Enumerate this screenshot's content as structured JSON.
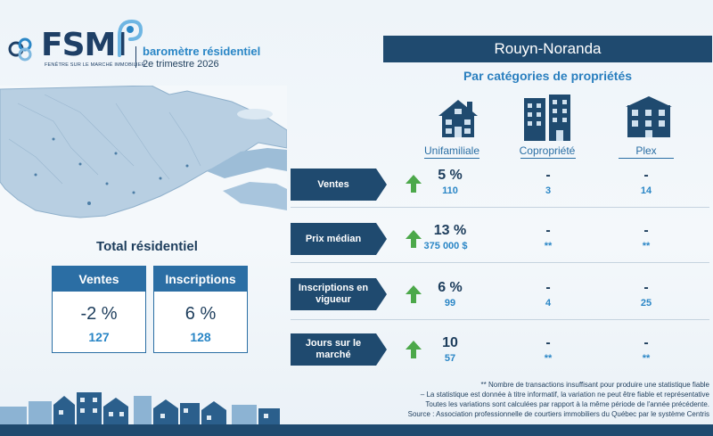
{
  "header": {
    "logo_text": "FSMI",
    "logo_tagline": "FENÊTRE SUR LE MARCHÉ IMMOBILIER",
    "report_title": "baromètre résidentiel",
    "quarter": "2e trimestre 2026"
  },
  "region": "Rouyn-Noranda",
  "section_title": "Par catégories de propriétés",
  "total": {
    "title": "Total résidentiel",
    "sales": {
      "label": "Ventes",
      "change": "-2 %",
      "value": "127"
    },
    "listings": {
      "label": "Inscriptions",
      "change": "6 %",
      "value": "128"
    }
  },
  "property_types": [
    "Unifamiliale",
    "Copropriété",
    "Plex"
  ],
  "rows": [
    {
      "label": "Ventes",
      "uni_change": "5 %",
      "uni_value": "110",
      "condo_change": "-",
      "condo_value": "3",
      "plex_change": "-",
      "plex_value": "14"
    },
    {
      "label": "Prix médian",
      "uni_change": "13 %",
      "uni_value": "375 000 $",
      "condo_change": "-",
      "condo_value": "**",
      "plex_change": "-",
      "plex_value": "**"
    },
    {
      "label_line1": "Inscriptions en",
      "label_line2": "vigueur",
      "uni_change": "6 %",
      "uni_value": "99",
      "condo_change": "-",
      "condo_value": "4",
      "plex_change": "-",
      "plex_value": "25"
    },
    {
      "label_line1": "Jours sur le",
      "label_line2": "marché",
      "uni_change": "10",
      "uni_value": "57",
      "condo_change": "-",
      "condo_value": "**",
      "plex_change": "-",
      "plex_value": "**"
    }
  ],
  "footnotes": [
    "** Nombre de transactions insuffisant pour produire une statistique fiable",
    "– La statistique est donnée à titre informatif, la variation ne peut être fiable et représentative",
    "Toutes les variations sont calculées par rapport à la même période de l'année précédente.",
    "Source : Association professionnelle de courtiers immobiliers du Québec par le système Centris"
  ],
  "colors": {
    "navy": "#1f4a6f",
    "accent_blue": "#2a86c6",
    "up_green": "#4ca84a"
  },
  "icons": [
    "fsmi-logo-icon",
    "quebec-map",
    "single-family-house-icon",
    "condo-building-icon",
    "plex-building-icon",
    "up-arrow-icon",
    "town-skyline"
  ]
}
